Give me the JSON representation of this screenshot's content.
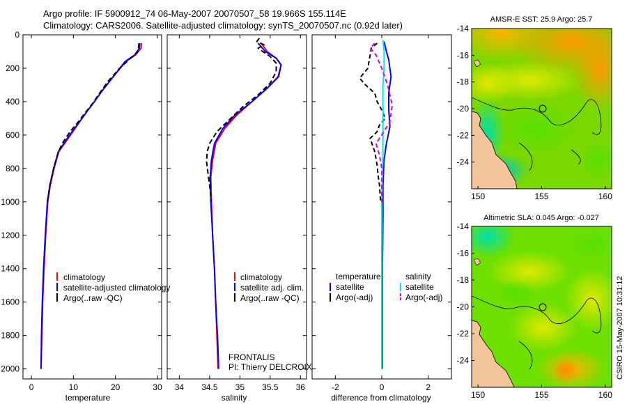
{
  "header": {
    "title_line1": "Argo profile: IF 5900912_74 06-May-2007 20070507_58 19.966S 155.114E",
    "title_line2": "Climatology: CARS2006. Satellite-adjusted climatology: synTS_20070507.nc (0.92d later)"
  },
  "side_stamp": "CSIRO 15-May-2007 10:31:12",
  "colors": {
    "climatology": "#ff0000",
    "satellite": "#0000ff",
    "argo": "#000000",
    "sal_satellite": "#00e5ee",
    "sal_argo": "#dd00dd",
    "land": "#f4c49a"
  },
  "chart_data": [
    {
      "type": "line",
      "panel": "temperature",
      "xlabel": "temperature",
      "xlim": [
        -2,
        31
      ],
      "xticks": [
        0,
        10,
        20,
        30
      ],
      "ylim": [
        2060,
        0
      ],
      "yticks": [
        0,
        200,
        400,
        600,
        800,
        1000,
        1200,
        1400,
        1600,
        1800,
        2000
      ],
      "legend": [
        "climatology",
        "satellite-adjusted climatology",
        "Argo(..raw -QC)"
      ],
      "series": [
        {
          "name": "climatology",
          "color": "red",
          "dash": "",
          "points": [
            [
              26.2,
              50
            ],
            [
              26.1,
              80
            ],
            [
              24.8,
              120
            ],
            [
              22.5,
              160
            ],
            [
              19.5,
              250
            ],
            [
              17.0,
              330
            ],
            [
              15.0,
              400
            ],
            [
              13.2,
              460
            ],
            [
              11.5,
              520
            ],
            [
              9.6,
              590
            ],
            [
              8.2,
              640
            ],
            [
              6.5,
              700
            ],
            [
              5.4,
              800
            ],
            [
              4.5,
              900
            ],
            [
              3.9,
              1000
            ],
            [
              3.4,
              1200
            ],
            [
              3.0,
              1400
            ],
            [
              2.7,
              1600
            ],
            [
              2.5,
              1800
            ],
            [
              2.3,
              2000
            ]
          ]
        },
        {
          "name": "satellite-adjusted climatology",
          "color": "blue",
          "dash": "",
          "points": [
            [
              25.8,
              50
            ],
            [
              25.7,
              80
            ],
            [
              24.6,
              120
            ],
            [
              22.3,
              160
            ],
            [
              19.5,
              250
            ],
            [
              17.0,
              330
            ],
            [
              15.0,
              400
            ],
            [
              13.2,
              460
            ],
            [
              11.5,
              520
            ],
            [
              9.4,
              590
            ],
            [
              8.0,
              640
            ],
            [
              6.4,
              700
            ],
            [
              5.3,
              800
            ],
            [
              4.4,
              900
            ],
            [
              3.8,
              1000
            ],
            [
              3.3,
              1200
            ],
            [
              2.9,
              1400
            ],
            [
              2.6,
              1600
            ],
            [
              2.4,
              1800
            ],
            [
              2.3,
              2000
            ]
          ]
        },
        {
          "name": "Argo(..raw -QC)",
          "color": "black",
          "dash": "7,4",
          "points": [
            [
              25.6,
              50
            ],
            [
              25.4,
              100
            ],
            [
              23.6,
              140
            ],
            [
              21.0,
              200
            ],
            [
              18.2,
              280
            ],
            [
              16.2,
              350
            ],
            [
              14.6,
              410
            ],
            [
              13.0,
              460
            ],
            [
              11.2,
              520
            ],
            [
              9.2,
              580
            ],
            [
              7.6,
              640
            ],
            [
              6.4,
              700
            ],
            [
              5.3,
              800
            ],
            [
              4.4,
              900
            ],
            [
              3.8,
              1000
            ]
          ]
        }
      ]
    },
    {
      "type": "line",
      "panel": "salinity",
      "xlabel": "salinity",
      "xlim": [
        33.8,
        36.1
      ],
      "xticks": [
        34,
        34.5,
        35,
        35.5,
        36
      ],
      "ylim": [
        2060,
        0
      ],
      "legend": [
        "climatology",
        "satellite adj. clim.",
        "Argo(..raw -QC)"
      ],
      "annotations": [
        "FRONTALIS",
        "PI: Thierry DELCROIX"
      ],
      "series": [
        {
          "name": "climatology",
          "color": "red",
          "dash": "",
          "points": [
            [
              35.35,
              50
            ],
            [
              35.45,
              100
            ],
            [
              35.6,
              140
            ],
            [
              35.68,
              180
            ],
            [
              35.63,
              250
            ],
            [
              35.45,
              320
            ],
            [
              35.2,
              400
            ],
            [
              34.95,
              480
            ],
            [
              34.75,
              560
            ],
            [
              34.6,
              650
            ],
            [
              34.55,
              750
            ],
            [
              34.52,
              850
            ],
            [
              34.53,
              1000
            ],
            [
              34.55,
              1200
            ],
            [
              34.58,
              1400
            ],
            [
              34.6,
              1600
            ],
            [
              34.62,
              1800
            ],
            [
              34.64,
              2000
            ]
          ]
        },
        {
          "name": "satellite adj. clim.",
          "color": "blue",
          "dash": "",
          "points": [
            [
              35.3,
              50
            ],
            [
              35.42,
              100
            ],
            [
              35.6,
              140
            ],
            [
              35.68,
              180
            ],
            [
              35.64,
              250
            ],
            [
              35.45,
              320
            ],
            [
              35.2,
              400
            ],
            [
              34.92,
              480
            ],
            [
              34.72,
              560
            ],
            [
              34.58,
              650
            ],
            [
              34.53,
              750
            ],
            [
              34.51,
              850
            ],
            [
              34.52,
              1000
            ],
            [
              34.55,
              1200
            ],
            [
              34.58,
              1400
            ],
            [
              34.6,
              1600
            ],
            [
              34.63,
              1800
            ],
            [
              34.65,
              2000
            ]
          ]
        },
        {
          "name": "Argo(..raw -QC)",
          "color": "black",
          "dash": "7,4",
          "points": [
            [
              35.32,
              20
            ],
            [
              35.28,
              40
            ],
            [
              35.4,
              60
            ],
            [
              35.3,
              80
            ],
            [
              35.5,
              130
            ],
            [
              35.6,
              170
            ],
            [
              35.6,
              220
            ],
            [
              35.5,
              290
            ],
            [
              35.3,
              360
            ],
            [
              35.05,
              430
            ],
            [
              34.85,
              500
            ],
            [
              34.62,
              580
            ],
            [
              34.5,
              650
            ],
            [
              34.46,
              700
            ],
            [
              34.45,
              760
            ],
            [
              34.47,
              820
            ],
            [
              34.5,
              900
            ],
            [
              34.53,
              1000
            ]
          ]
        }
      ]
    },
    {
      "type": "line",
      "panel": "difference",
      "xlabel": "difference from climatology",
      "xlim": [
        -3,
        3
      ],
      "xticks": [
        -2,
        0,
        2
      ],
      "ylim": [
        2060,
        0
      ],
      "legend_left": [
        "temperature",
        "satellite",
        "Argo(-adj)"
      ],
      "legend_right": [
        "salinity",
        "satellite",
        "Argo(-adj)"
      ],
      "series": [
        {
          "name": "temperature satellite",
          "color": "blue",
          "dash": "",
          "points": [
            [
              0.1,
              40
            ],
            [
              0.2,
              100
            ],
            [
              0.3,
              150
            ],
            [
              0.4,
              250
            ],
            [
              0.3,
              350
            ],
            [
              0.3,
              450
            ],
            [
              0.35,
              550
            ],
            [
              0.2,
              650
            ],
            [
              0.1,
              750
            ],
            [
              0.05,
              900
            ],
            [
              0.05,
              1100
            ],
            [
              0.03,
              1400
            ],
            [
              0.03,
              2000
            ]
          ]
        },
        {
          "name": "temperature Argo(-adj)",
          "color": "black",
          "dash": "6,4",
          "points": [
            [
              -0.2,
              50
            ],
            [
              -0.45,
              80
            ],
            [
              -0.5,
              120
            ],
            [
              -0.6,
              200
            ],
            [
              -0.95,
              260
            ],
            [
              -0.7,
              300
            ],
            [
              -0.3,
              350
            ],
            [
              -0.2,
              400
            ],
            [
              0.0,
              450
            ],
            [
              0.15,
              500
            ],
            [
              -0.1,
              540
            ],
            [
              -0.2,
              580
            ],
            [
              -0.5,
              620
            ],
            [
              -0.3,
              700
            ],
            [
              -0.2,
              780
            ],
            [
              -0.15,
              850
            ],
            [
              -0.1,
              900
            ],
            [
              -0.05,
              1000
            ]
          ]
        },
        {
          "name": "salinity satellite",
          "color": "cyan",
          "dash": "",
          "points": [
            [
              0.05,
              30
            ],
            [
              0.1,
              100
            ],
            [
              0.1,
              200
            ],
            [
              0.05,
              300
            ],
            [
              0.05,
              500
            ],
            [
              0.05,
              700
            ],
            [
              0.0,
              1000
            ],
            [
              0.0,
              2000
            ]
          ]
        },
        {
          "name": "salinity Argo(-adj)",
          "color": "magenta",
          "dash": "6,4",
          "points": [
            [
              -0.3,
              50
            ],
            [
              -0.5,
              80
            ],
            [
              -0.25,
              120
            ],
            [
              0.0,
              200
            ],
            [
              0.25,
              300
            ],
            [
              0.45,
              420
            ],
            [
              0.35,
              520
            ],
            [
              0.0,
              600
            ],
            [
              -0.25,
              650
            ],
            [
              -0.1,
              720
            ],
            [
              0.0,
              800
            ],
            [
              0.0,
              1000
            ]
          ]
        }
      ]
    },
    {
      "type": "heatmap",
      "panel": "sst-map",
      "title": "AMSR-E SST: 25.9 Argo: 25.7",
      "xticks": [
        150,
        155,
        160
      ],
      "yticks": [
        -14,
        -16,
        -18,
        -20,
        -22,
        -24
      ],
      "xlim": [
        149.5,
        160.5
      ],
      "ylim": [
        -26,
        -14
      ],
      "float_position": [
        155.114,
        -19.966
      ]
    },
    {
      "type": "heatmap",
      "panel": "sla-map",
      "title": "Altimetric SLA: 0.045 Argo: -0.027",
      "xticks": [
        150,
        155,
        160
      ],
      "yticks": [
        -14,
        -16,
        -18,
        -20,
        -22,
        -24
      ],
      "xlim": [
        149.5,
        160.5
      ],
      "ylim": [
        -26,
        -14
      ],
      "float_position": [
        155.114,
        -19.966
      ]
    }
  ]
}
